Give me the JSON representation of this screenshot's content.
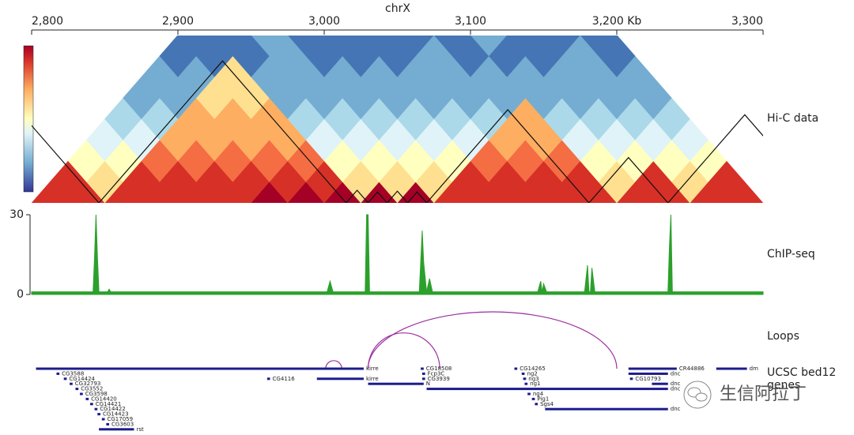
{
  "axis": {
    "title": "chrX",
    "xlim": [
      2800,
      3300
    ],
    "xticks": [
      {
        "value": 2800,
        "label": "2,800"
      },
      {
        "value": 2900,
        "label": "2,900"
      },
      {
        "value": 3000,
        "label": "3,000"
      },
      {
        "value": 3100,
        "label": "3,100"
      },
      {
        "value": 3200,
        "label": "3,200 Kb"
      },
      {
        "value": 3300,
        "label": "3,300"
      }
    ]
  },
  "hic": {
    "label": "Hi-C data",
    "bin_kb": 25,
    "vlim": [
      0,
      10
    ],
    "matrix": [
      [
        9,
        9,
        9,
        9,
        9,
        9,
        10,
        10,
        10,
        10,
        10,
        9,
        9,
        9,
        9,
        9,
        9,
        9,
        9,
        9
      ],
      [
        9,
        6,
        9,
        9,
        9,
        9,
        9,
        9,
        6,
        6,
        6,
        9,
        9,
        9,
        9,
        6,
        9,
        6,
        9
      ],
      [
        5,
        5,
        8,
        8,
        8,
        8,
        8,
        5,
        5,
        5,
        5,
        8,
        8,
        8,
        5,
        5,
        5,
        5
      ],
      [
        4,
        4,
        7,
        7,
        7,
        7,
        4,
        4,
        4,
        4,
        4,
        7,
        7,
        4,
        4,
        4,
        4
      ],
      [
        3,
        3,
        7,
        7,
        7,
        3,
        3,
        3,
        3,
        3,
        3,
        7,
        3,
        3,
        3,
        3
      ],
      [
        2,
        2,
        6,
        6,
        2,
        2,
        2,
        2,
        2,
        2,
        2,
        2,
        2,
        2,
        2
      ],
      [
        2,
        2,
        6,
        2,
        2,
        2,
        2,
        2,
        2,
        2,
        2,
        2,
        2,
        2
      ],
      [
        1,
        1,
        1,
        2,
        1,
        1,
        1,
        2,
        1,
        1,
        1,
        2,
        1
      ],
      [
        1,
        1,
        2,
        1,
        1,
        1,
        1,
        1,
        2,
        1,
        1,
        1
      ]
    ],
    "domains": [
      [
        2740,
        2846
      ],
      [
        2846,
        3015
      ],
      [
        3015,
        3030
      ],
      [
        3030,
        3043
      ],
      [
        3043,
        3057
      ],
      [
        3057,
        3070
      ],
      [
        3070,
        3181
      ],
      [
        3181,
        3235
      ],
      [
        3235,
        3340
      ]
    ]
  },
  "chipseq": {
    "label": "ChIP-seq",
    "color": "#2ca02c",
    "ylim": [
      0,
      30
    ],
    "yticks": [
      0,
      30
    ],
    "x": [
      2800,
      2842,
      2843,
      2844,
      2845,
      2846,
      2852,
      2853,
      2854,
      3002,
      3004,
      3006,
      3028,
      3029,
      3030,
      3031,
      3065,
      3067,
      3068,
      3070,
      3072,
      3074,
      3146,
      3148,
      3149,
      3150,
      3152,
      3178,
      3180,
      3181,
      3182,
      3183,
      3185,
      3235,
      3236,
      3237,
      3238,
      3300
    ],
    "values": [
      1,
      1,
      14,
      30,
      14,
      1,
      1,
      2,
      1,
      1,
      5,
      1,
      1,
      30,
      30,
      1,
      1,
      24,
      12,
      1,
      6,
      1,
      1,
      5,
      1,
      4,
      1,
      1,
      11,
      1,
      1,
      10,
      1,
      1,
      18,
      30,
      1,
      1
    ]
  },
  "loops": {
    "label": "Loops",
    "color": "#9b30a0",
    "pairs": [
      [
        3001,
        3012
      ],
      [
        3030,
        3079
      ],
      [
        3030,
        3200
      ]
    ]
  },
  "genes": {
    "label": "UCSC bed12",
    "sublabel": "genes",
    "color": "#1c1c8c",
    "list": [
      {
        "name": "kirre",
        "start": 2803,
        "end": 3027,
        "row": 0
      },
      {
        "name": "CG18508",
        "start": 3066,
        "end": 3068,
        "row": 0
      },
      {
        "name": "CG14265",
        "start": 3130,
        "end": 3132,
        "row": 0
      },
      {
        "name": "CR44886",
        "start": 3208,
        "end": 3241,
        "row": 0
      },
      {
        "name": "dm",
        "start": 3268,
        "end": 3289,
        "row": 0
      },
      {
        "name": "CG3588",
        "start": 2817,
        "end": 2819,
        "row": 1
      },
      {
        "name": "Fcp3C",
        "start": 3067,
        "end": 3069,
        "row": 1
      },
      {
        "name": "ng2",
        "start": 3135,
        "end": 3137,
        "row": 1
      },
      {
        "name": "dnc",
        "start": 3208,
        "end": 3235,
        "row": 1
      },
      {
        "name": "CG14424",
        "start": 2822,
        "end": 2824,
        "row": 2
      },
      {
        "name": "CG4116",
        "start": 2961,
        "end": 2963,
        "row": 2
      },
      {
        "name": "kirre",
        "start": 2995,
        "end": 3027,
        "row": 2
      },
      {
        "name": "CG3939",
        "start": 3067,
        "end": 3069,
        "row": 2
      },
      {
        "name": "ng3",
        "start": 3136,
        "end": 3138,
        "row": 2
      },
      {
        "name": "CG10793",
        "start": 3209,
        "end": 3211,
        "row": 2
      },
      {
        "name": "CG32793",
        "start": 2826,
        "end": 2828,
        "row": 3
      },
      {
        "name": "N",
        "start": 3030,
        "end": 3068,
        "row": 3
      },
      {
        "name": "ng1",
        "start": 3137,
        "end": 3139,
        "row": 3
      },
      {
        "name": "dnc",
        "start": 3224,
        "end": 3235,
        "row": 3
      },
      {
        "name": "CG3552",
        "start": 2830,
        "end": 2832,
        "row": 4
      },
      {
        "name": "dnc",
        "start": 3070,
        "end": 3235,
        "row": 4
      },
      {
        "name": "CG3598",
        "start": 2833,
        "end": 2835,
        "row": 5
      },
      {
        "name": "ng4",
        "start": 3139,
        "end": 3141,
        "row": 5
      },
      {
        "name": "CG14420",
        "start": 2837,
        "end": 2839,
        "row": 6
      },
      {
        "name": "Pig1",
        "start": 3142,
        "end": 3144,
        "row": 6
      },
      {
        "name": "CG14421",
        "start": 2840,
        "end": 2842,
        "row": 7
      },
      {
        "name": "Sgs4",
        "start": 3144,
        "end": 3146,
        "row": 7
      },
      {
        "name": "CG14422",
        "start": 2843,
        "end": 2845,
        "row": 8
      },
      {
        "name": "dnc",
        "start": 3151,
        "end": 3235,
        "row": 8
      },
      {
        "name": "CG14423",
        "start": 2845,
        "end": 2847,
        "row": 9
      },
      {
        "name": "CG17059",
        "start": 2848,
        "end": 2850,
        "row": 10
      },
      {
        "name": "CG3603",
        "start": 2851,
        "end": 2853,
        "row": 11
      },
      {
        "name": "rst",
        "start": 2846,
        "end": 2870,
        "row": 12
      }
    ]
  },
  "watermark": "生信阿拉丁"
}
